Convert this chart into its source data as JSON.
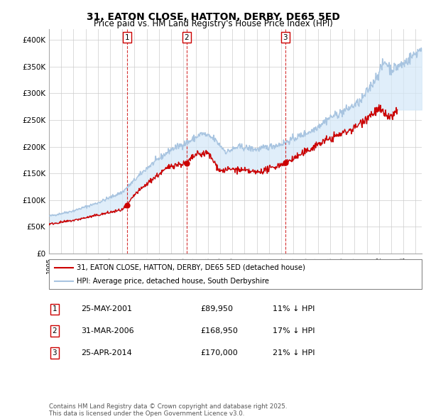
{
  "title": "31, EATON CLOSE, HATTON, DERBY, DE65 5ED",
  "subtitle": "Price paid vs. HM Land Registry's House Price Index (HPI)",
  "ylim": [
    0,
    420000
  ],
  "yticks": [
    0,
    50000,
    100000,
    150000,
    200000,
    250000,
    300000,
    350000,
    400000
  ],
  "ytick_labels": [
    "£0",
    "£50K",
    "£100K",
    "£150K",
    "£200K",
    "£250K",
    "£300K",
    "£350K",
    "£400K"
  ],
  "hpi_color": "#a8c4e0",
  "hpi_fill_color": "#d4e8f8",
  "price_color": "#cc0000",
  "grid_color": "#cccccc",
  "background_color": "#ffffff",
  "legend_entry1": "31, EATON CLOSE, HATTON, DERBY, DE65 5ED (detached house)",
  "legend_entry2": "HPI: Average price, detached house, South Derbyshire",
  "transactions": [
    {
      "num": 1,
      "date": "25-MAY-2001",
      "price": 89950,
      "year": 2001.4,
      "pct": "11%",
      "dir": "↓"
    },
    {
      "num": 2,
      "date": "31-MAR-2006",
      "price": 168950,
      "year": 2006.25,
      "pct": "17%",
      "dir": "↓"
    },
    {
      "num": 3,
      "date": "25-APR-2014",
      "price": 170000,
      "year": 2014.33,
      "pct": "21%",
      "dir": "↓"
    }
  ],
  "footer": "Contains HM Land Registry data © Crown copyright and database right 2025.\nThis data is licensed under the Open Government Licence v3.0.",
  "xlim_start": 1995.0,
  "xlim_end": 2025.5
}
